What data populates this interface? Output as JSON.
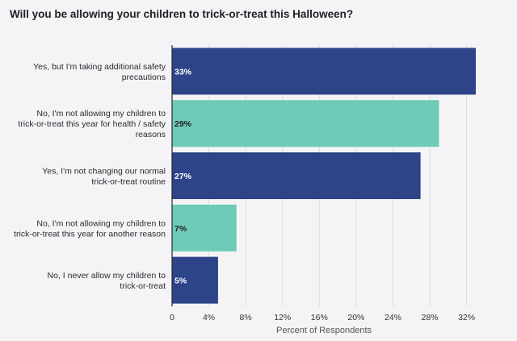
{
  "chart_data": {
    "type": "bar",
    "orientation": "horizontal",
    "title": "Will you be allowing your children to trick-or-treat this Halloween?",
    "xlabel": "Percent of Respondents",
    "ylabel": "",
    "xlim": [
      0,
      33
    ],
    "xticks": [
      0,
      4,
      8,
      12,
      16,
      20,
      24,
      28,
      32
    ],
    "xtick_labels": [
      "0",
      "4%",
      "8%",
      "12%",
      "16%",
      "20%",
      "24%",
      "28%",
      "32%"
    ],
    "grid": "vertical",
    "categories": [
      [
        "Yes, but I'm taking additional safety",
        "precautions"
      ],
      [
        "No, I'm not allowing my children to",
        "trick-or-treat this year for health / safety",
        "reasons"
      ],
      [
        "Yes, I'm not changing our normal",
        "trick-or-treat routine"
      ],
      [
        "No, I'm not allowing my children to",
        "trick-or-treat this year for another reason"
      ],
      [
        "No, I never allow my children to",
        "trick-or-treat"
      ]
    ],
    "values": [
      33,
      29,
      27,
      7,
      5
    ],
    "data_labels": [
      "33%",
      "29%",
      "27%",
      "7%",
      "5%"
    ],
    "colors": [
      "#2e4488",
      "#6fcbb8",
      "#2e4488",
      "#6fcbb8",
      "#2e4488"
    ],
    "label_colors": [
      "#ffffff",
      "#1f1f24",
      "#ffffff",
      "#1f1f24",
      "#ffffff"
    ]
  }
}
